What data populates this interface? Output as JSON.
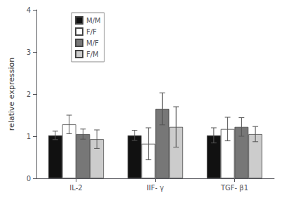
{
  "chart_data": {
    "type": "bar",
    "categories": [
      "IL-2",
      "IIF- γ",
      "TGF- β1"
    ],
    "series": [
      {
        "name": "M/M",
        "color": "#111111",
        "values": [
          1.02,
          1.02,
          1.02
        ],
        "errors": [
          0.1,
          0.12,
          0.18
        ]
      },
      {
        "name": "F/F",
        "color": "#ffffff",
        "values": [
          1.28,
          0.82,
          1.17
        ],
        "errors": [
          0.22,
          0.38,
          0.28
        ]
      },
      {
        "name": "M/F",
        "color": "#777777",
        "values": [
          1.05,
          1.65,
          1.22
        ],
        "errors": [
          0.12,
          0.38,
          0.22
        ]
      },
      {
        "name": "F/M",
        "color": "#cccccc",
        "values": [
          0.93,
          1.22,
          1.05
        ],
        "errors": [
          0.22,
          0.48,
          0.18
        ]
      }
    ],
    "ylabel": "relative expression",
    "ylim": [
      0,
      4
    ],
    "yticks": [
      0,
      1,
      2,
      3,
      4
    ],
    "grid": false,
    "legend": "upper left"
  }
}
